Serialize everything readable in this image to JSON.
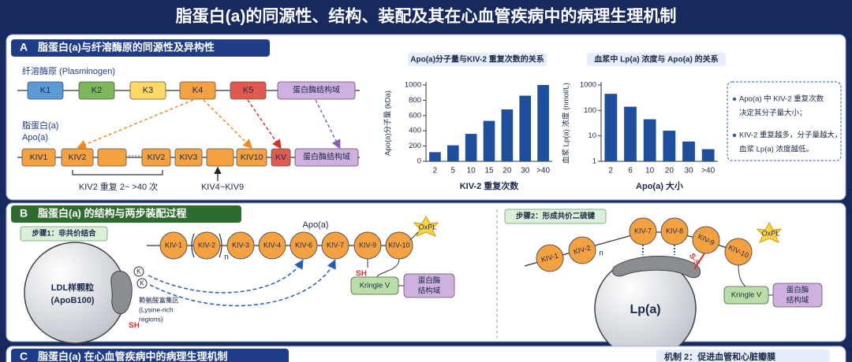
{
  "header": {
    "title": "脂蛋白(a)的同源性、结构、装配及其在心血管疾病中的病理生理机制"
  },
  "section_a": {
    "letter": "A",
    "title": "脂蛋白(a)与纤溶酶原的同源性及异构性",
    "plasminogen": {
      "label": "纤溶酶原 (Plasminogen)",
      "domains": [
        "K1",
        "K2",
        "K3",
        "K4",
        "K5",
        "蛋白酶结构域"
      ]
    },
    "apoa": {
      "label": "脂蛋白(a)",
      "sublabel": "Apo(a)",
      "domains": [
        "KIV1",
        "KIV2",
        "KIV2",
        "KIV3",
        "KIV10",
        "KV",
        "蛋白酶结构域"
      ]
    },
    "repeat_note": "KIV2 重复 2~ >40 次",
    "kiv_range": "KIV4~KIV9",
    "notes": [
      [
        "Apo(a) 中 KIV-2 重复次数",
        "决定其分子量大小；"
      ],
      [
        "KIV-2 重复越多，分子量越大，",
        "血浆 Lp(a) 浓度越低。"
      ]
    ]
  },
  "chart_data": [
    {
      "type": "bar",
      "title": "Apo(a)分子量与KIV-2 重复次数的关系",
      "y_label": "Apo(a)分子量 (kDa)",
      "x_label": "KIV-2 重复次数",
      "categories": [
        "2",
        "5",
        "10",
        "15",
        "20",
        "30",
        ">40"
      ],
      "values": [
        120,
        210,
        360,
        530,
        680,
        860,
        1000
      ],
      "color": "#1f4e9c",
      "ylim": [
        0,
        1000
      ],
      "yticks": [
        0,
        200,
        400,
        600,
        800,
        1000
      ]
    },
    {
      "type": "bar",
      "title": "血浆中 Lp(a) 浓度与 Apo(a) 的关系",
      "y_label": "血浆 Lp(a) 浓度 (nmol/L)",
      "x_label": "Apo(a) 大小",
      "categories": [
        "2",
        "6",
        "10",
        "20",
        "30",
        ">40"
      ],
      "values": [
        450,
        140,
        45,
        16,
        6,
        3
      ],
      "color": "#1f4e9c",
      "log_scale": true,
      "ylim": [
        1,
        1000
      ],
      "yticks": [
        1,
        10,
        100,
        1000
      ]
    }
  ],
  "section_b": {
    "letter": "B",
    "title": "脂蛋白(a) 的结构与两步装配过程",
    "step1": {
      "label": "步骤1：非共价结合",
      "apoa_label": "Apo(a)",
      "chain": [
        "KIV-1",
        "KIV-2",
        "KIV-3",
        "KIV-4",
        "KIV-6",
        "KIV-7",
        "KIV-9",
        "KIV-10"
      ],
      "repeat_n": "n",
      "oxpl": "OxPL",
      "sh_apoa": "SH",
      "kringle": "Kringle V",
      "protease": [
        "蛋白酶",
        "结构域"
      ],
      "particle": [
        "LDL样颗粒",
        "(ApoB100)"
      ],
      "lysine_k": [
        "K",
        "K"
      ],
      "lysine_region": [
        "赖氨酸富集区",
        "(Lysine-rich",
        "regions)"
      ],
      "sh_particle": "SH"
    },
    "step2": {
      "label": "步骤2：形成共价二硫键",
      "chain": [
        "KIV-1",
        "KIV-2",
        "KIV-7",
        "KIV-8",
        "KIV-9",
        "KIV-10"
      ],
      "repeat_n": "n",
      "oxpl": "OxPL",
      "disulfide": "S-S",
      "kringle": "Kringle V",
      "protease": [
        "蛋白酶",
        "结构域"
      ],
      "particle": "Lp(a)"
    }
  },
  "section_c": {
    "letter": "C",
    "title": "脂蛋白(a) 在心血管疾病中的病理生理机制",
    "mechanism2": "机制 2：促进血管和心脏瓣膜"
  }
}
